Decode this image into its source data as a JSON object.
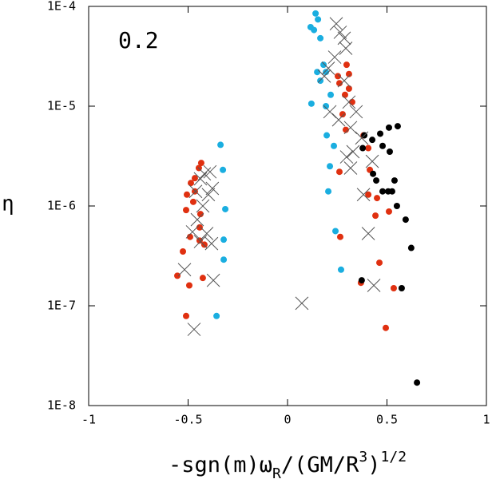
{
  "chart_data": {
    "type": "scatter",
    "annotation": "0.2",
    "y_label": "η",
    "x_label": [
      "-sgn(m)ω",
      "R",
      "/(GM/R",
      "3",
      ")",
      "1/2"
    ],
    "xlim": [
      -1,
      1
    ],
    "xticks": [
      -1,
      -0.5,
      0,
      0.5,
      1
    ],
    "ylim": [
      1e-08,
      0.0001
    ],
    "log_y": true,
    "yticks": [
      {
        "value": 1e-08,
        "label": "1E-8"
      },
      {
        "value": 1e-07,
        "label": "1E-7"
      },
      {
        "value": 1e-06,
        "label": "1E-6"
      },
      {
        "value": 1e-05,
        "label": "1E-5"
      },
      {
        "value": 0.0001,
        "label": "1E-4"
      }
    ],
    "series": [
      {
        "color": "#1aaee0",
        "marker": "circle",
        "x": [
          0.141,
          0.153,
          0.116,
          0.133,
          0.165,
          0.181,
          0.149,
          0.165,
          0.193,
          0.217,
          0.12,
          0.193,
          0.197,
          0.233,
          0.213,
          0.205,
          0.241,
          0.269,
          -0.337,
          -0.325,
          -0.313,
          -0.321,
          -0.321,
          -0.357
        ],
        "values": [
          8.5e-05,
          7.4e-05,
          6.2e-05,
          5.8e-05,
          4.8e-05,
          2.6e-05,
          2.2e-05,
          1.8e-05,
          2.2e-05,
          1.3e-05,
          1.06e-05,
          1e-05,
          5.1e-06,
          4e-06,
          2.5e-06,
          1.4e-06,
          5.6e-07,
          2.3e-07,
          4.1e-06,
          2.3e-06,
          9.3e-07,
          4.6e-07,
          2.9e-07,
          7.9e-08
        ]
      },
      {
        "color": "#e03010",
        "marker": "circle",
        "x": [
          0.297,
          0.309,
          0.253,
          0.261,
          0.309,
          0.289,
          0.325,
          0.277,
          0.293,
          0.382,
          0.406,
          0.414,
          0.261,
          0.406,
          0.45,
          0.51,
          0.442,
          0.265,
          0.462,
          0.369,
          0.534,
          0.494,
          -0.434,
          -0.446,
          -0.466,
          -0.486,
          -0.466,
          -0.506,
          -0.474,
          -0.51,
          -0.438,
          -0.49,
          -0.442,
          -0.442,
          -0.526,
          -0.418,
          -0.554,
          -0.494,
          -0.426,
          -0.51
        ],
        "values": [
          2.6e-05,
          2.1e-05,
          2e-05,
          1.7e-05,
          1.5e-05,
          1.3e-05,
          1.1e-05,
          8.3e-06,
          5.8e-06,
          5.1e-06,
          3.8e-06,
          2.3e-06,
          2.2e-06,
          1.3e-06,
          1.2e-06,
          8.8e-07,
          8e-07,
          4.9e-07,
          2.7e-07,
          1.7e-07,
          1.5e-07,
          6e-08,
          2.7e-06,
          2.4e-06,
          1.9e-06,
          1.7e-06,
          1.4e-06,
          1.3e-06,
          1.1e-06,
          9.1e-07,
          8.3e-07,
          4.9e-07,
          6.1e-07,
          4.5e-07,
          3.5e-07,
          4.1e-07,
          2e-07,
          1.6e-07,
          1.9e-07,
          7.9e-08
        ]
      },
      {
        "color": "#000000",
        "marker": "circle",
        "x": [
          0.554,
          0.51,
          0.466,
          0.386,
          0.426,
          0.478,
          0.378,
          0.514,
          0.43,
          0.446,
          0.538,
          0.506,
          0.478,
          0.526,
          0.55,
          0.594,
          0.622,
          0.373,
          0.574,
          0.651
        ],
        "values": [
          6.3e-06,
          6.1e-06,
          5.3e-06,
          5.1e-06,
          4.6e-06,
          4e-06,
          3.8e-06,
          3.5e-06,
          2.1e-06,
          1.8e-06,
          1.8e-06,
          1.4e-06,
          1.4e-06,
          1.4e-06,
          1e-06,
          7.3e-07,
          3.8e-07,
          1.8e-07,
          1.5e-07,
          1.7e-08
        ]
      },
      {
        "color": "#555555",
        "marker": "x",
        "x": [
          -0.438,
          -0.418,
          -0.39,
          -0.462,
          -0.398,
          -0.378,
          -0.426,
          -0.454,
          -0.406,
          -0.478,
          -0.382,
          -0.438,
          -0.518,
          -0.373,
          -0.47,
          0.245,
          0.265,
          0.285,
          0.293,
          0.237,
          0.205,
          0.185,
          0.285,
          0.309,
          0.213,
          0.345,
          0.257,
          0.317,
          0.373,
          0.329,
          0.297,
          0.426,
          0.317,
          0.382,
          0.406,
          0.434,
          0.072
        ],
        "values": [
          1.87e-06,
          2.1e-06,
          2.2e-06,
          1.4e-06,
          1.3e-06,
          1.5e-06,
          1e-06,
          7.3e-07,
          5.3e-07,
          5.5e-07,
          4.2e-07,
          4.4e-07,
          2.3e-07,
          1.8e-07,
          5.8e-08,
          6.7e-05,
          5.5e-05,
          4.8e-05,
          3.8e-05,
          3.1e-05,
          2.4e-05,
          2e-05,
          1.8e-05,
          1.1e-05,
          8.8e-06,
          8.8e-06,
          7.3e-06,
          6.1e-06,
          4.8e-06,
          3.5e-06,
          3.1e-06,
          2.8e-06,
          2.4e-06,
          1.3e-06,
          5.3e-07,
          1.6e-07,
          1.06e-07
        ]
      }
    ]
  }
}
